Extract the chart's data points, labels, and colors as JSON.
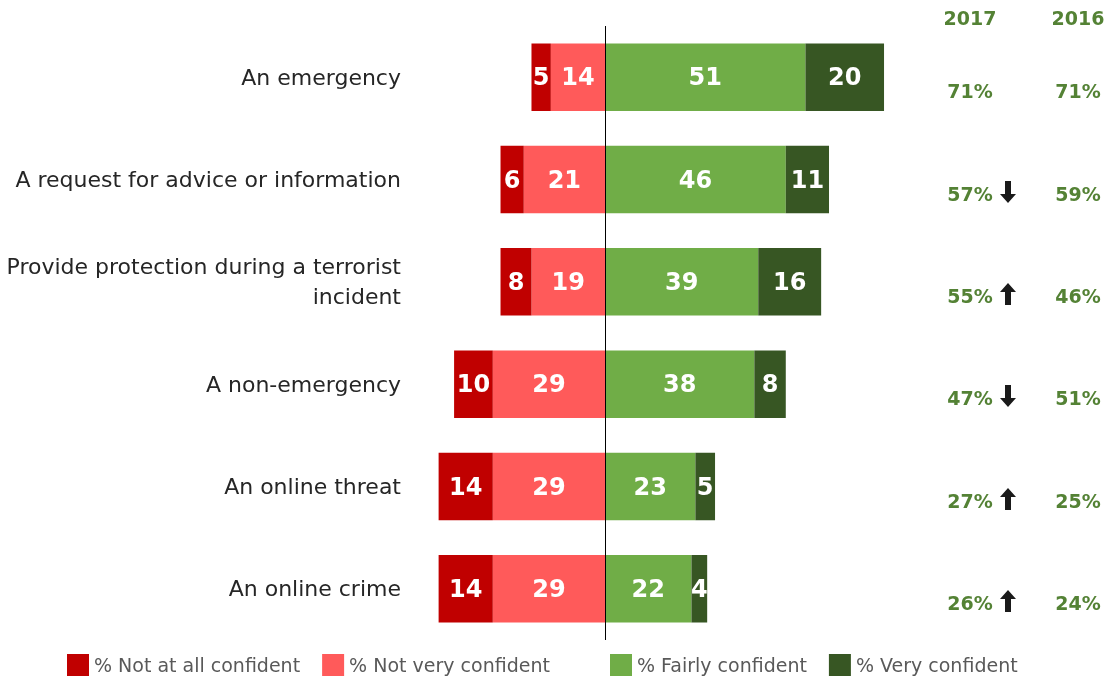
{
  "chart_data": [
    {
      "type": "bar",
      "orientation": "horizontal",
      "stacked": true,
      "categories": [
        "An emergency",
        "A request for advice or information",
        "Provide protection during a terrorist incident",
        "A non-emergency",
        "An online threat",
        "An online crime"
      ],
      "series": [
        {
          "name": "% Not very confident",
          "color": "#ff5a5a",
          "values": [
            14,
            21,
            19,
            29,
            29,
            29
          ]
        },
        {
          "name": "% Not at all confident",
          "color": "#c00000",
          "values": [
            5,
            6,
            8,
            10,
            14,
            14
          ]
        }
      ],
      "data_labels": true,
      "legend": "bottom"
    },
    {
      "type": "bar",
      "orientation": "horizontal",
      "stacked": true,
      "categories": [
        null,
        null,
        null,
        null,
        null,
        null
      ],
      "series": [
        {
          "name": "% Fairly confident",
          "color": "#70ad47",
          "values": [
            51,
            46,
            39,
            38,
            23,
            22
          ]
        },
        {
          "name": "% Very confident",
          "color": "#375623",
          "values": [
            20,
            11,
            16,
            8,
            5,
            4
          ]
        }
      ],
      "tick_labels": false,
      "data_labels": true,
      "legend": "bottom",
      "ref_lines": [
        {
          "axis": "x",
          "value": 0,
          "color": "#000000"
        }
      ],
      "annotations": [
        "2017",
        "2016",
        "71%",
        "71%",
        "57%",
        "59%",
        "55%",
        "46%",
        "47%",
        "51%",
        "27%",
        "25%",
        "26%",
        "24%"
      ]
    }
  ]
}
